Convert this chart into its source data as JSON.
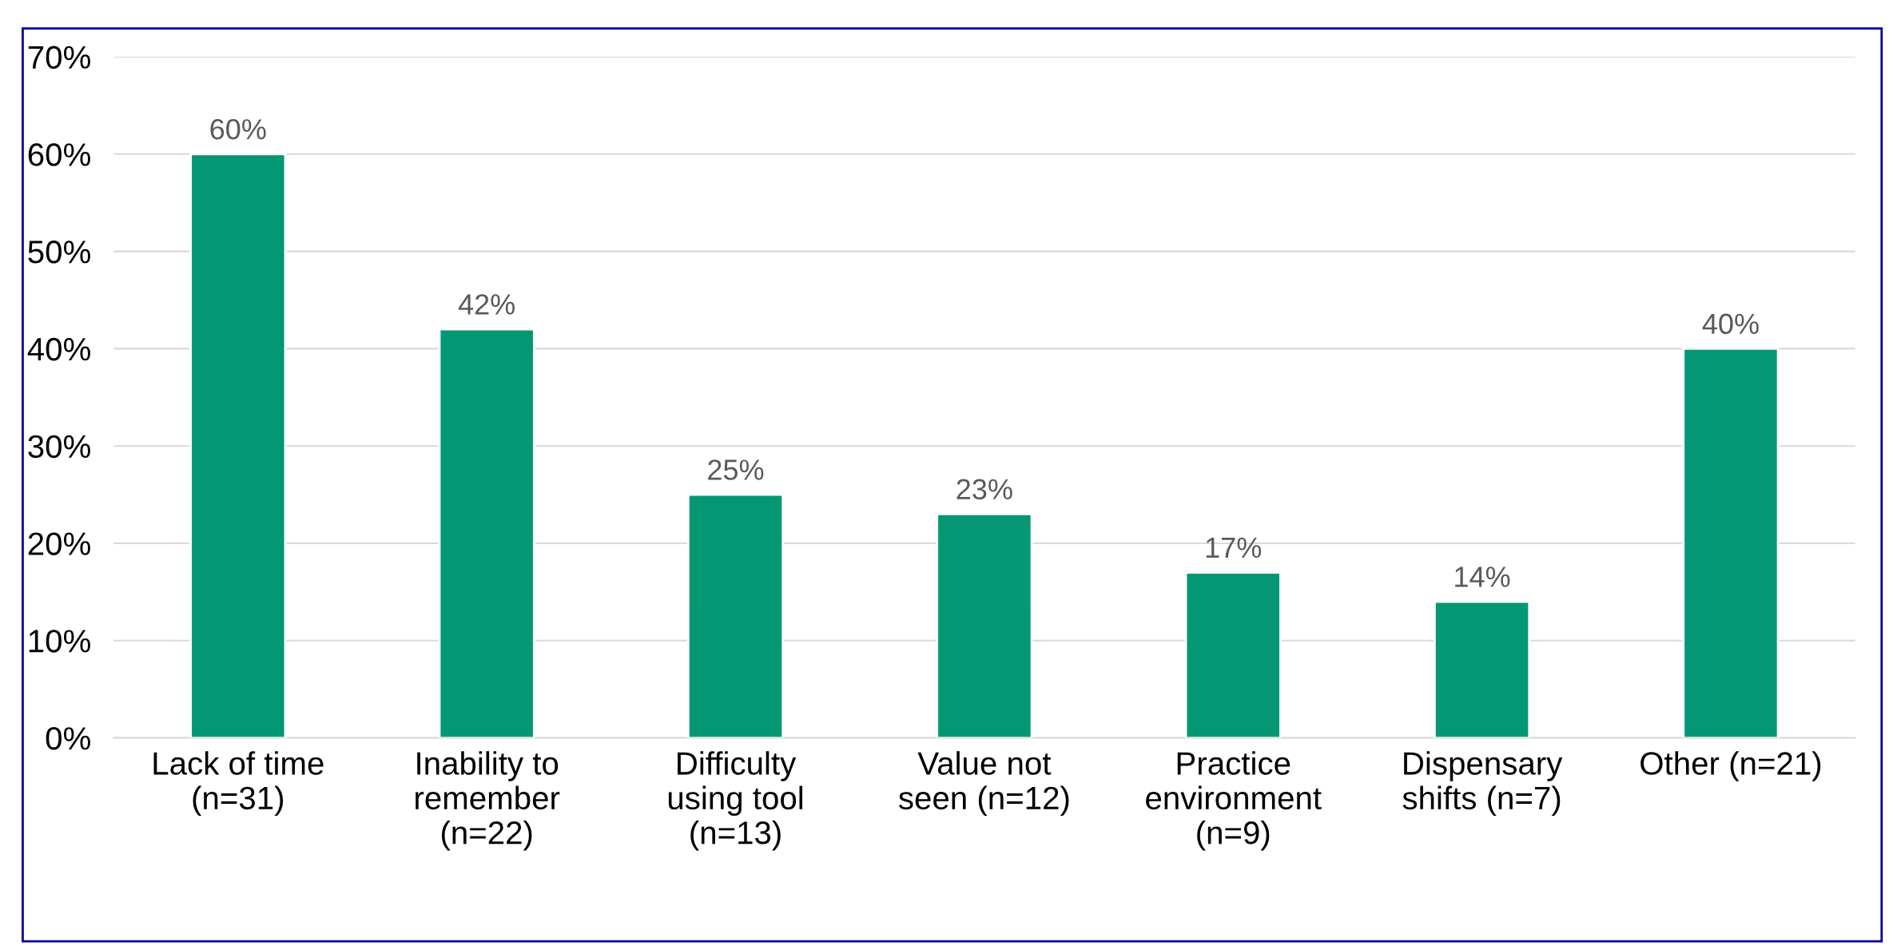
{
  "chart_data": {
    "type": "bar",
    "categories": [
      "Lack of time\n(n=31)",
      "Inability to\nremember\n(n=22)",
      "Difficulty\nusing tool\n(n=13)",
      "Value not\nseen (n=12)",
      "Practice\nenvironment\n(n=9)",
      "Dispensary\nshifts (n=7)",
      "Other (n=21)"
    ],
    "values": [
      60,
      42,
      25,
      23,
      17,
      14,
      40
    ],
    "value_labels": [
      "60%",
      "42%",
      "25%",
      "23%",
      "17%",
      "14%",
      "40%"
    ],
    "color": "#039873",
    "ylim": [
      0,
      70
    ],
    "yticks": [
      {
        "value": 0,
        "label": "0%"
      },
      {
        "value": 10,
        "label": "10%"
      },
      {
        "value": 20,
        "label": "20%"
      },
      {
        "value": 30,
        "label": "30%"
      },
      {
        "value": 40,
        "label": "40%"
      },
      {
        "value": 50,
        "label": "50%"
      },
      {
        "value": 60,
        "label": "60%"
      },
      {
        "value": 70,
        "label": "70%"
      }
    ],
    "grid": "y"
  }
}
